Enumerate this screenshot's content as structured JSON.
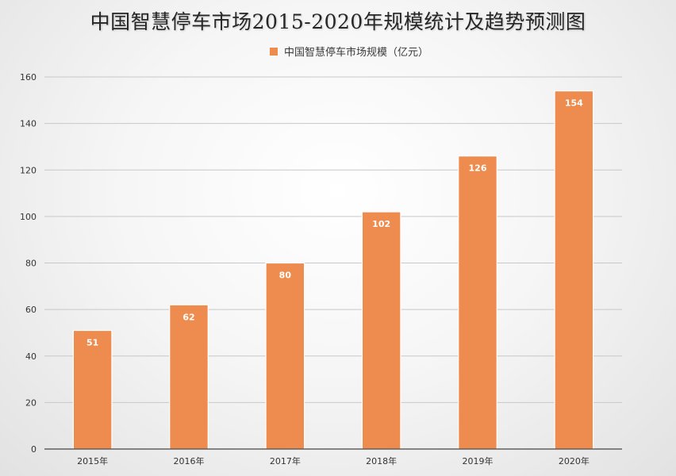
{
  "chart_data": {
    "type": "bar",
    "title": "中国智慧停车市场2015-2020年规模统计及趋势预测图",
    "categories": [
      "2015年",
      "2016年",
      "2017年",
      "2018年",
      "2019年",
      "2020年"
    ],
    "series": [
      {
        "name": "中国智慧停车市场规模（亿元）",
        "values": [
          51,
          62,
          80,
          102,
          126,
          154
        ]
      }
    ],
    "data_labels": [
      "51",
      "62",
      "80",
      "102",
      "126",
      "154"
    ],
    "yticks": [
      "0",
      "20",
      "40",
      "60",
      "80",
      "100",
      "120",
      "140",
      "160"
    ],
    "ylim": [
      0,
      160
    ],
    "grid": true,
    "legend_position": "top-center",
    "bar_color": "#ED8C4E"
  }
}
